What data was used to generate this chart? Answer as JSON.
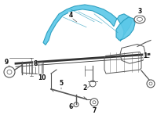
{
  "background_color": "#ffffff",
  "highlight_color": "#5bc8e8",
  "highlight_edge": "#2299bb",
  "line_color": "#555555",
  "line_color_dark": "#333333",
  "label_color": "#111111",
  "figsize": [
    2.0,
    1.47
  ],
  "dpi": 100
}
